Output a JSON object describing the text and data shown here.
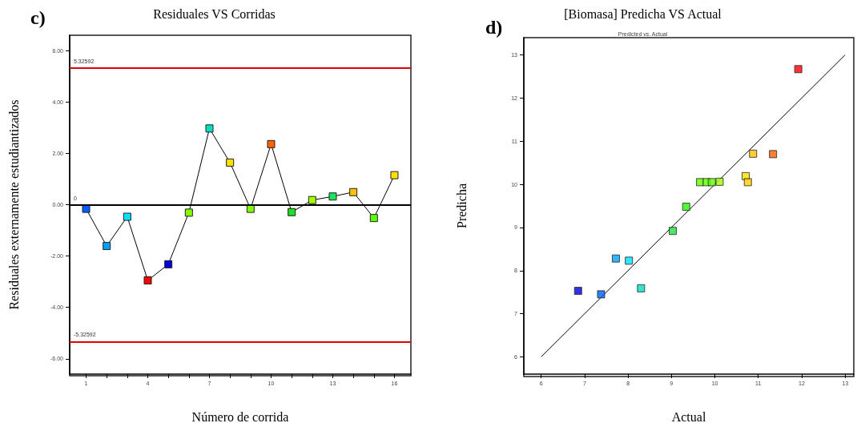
{
  "chart_data": [
    {
      "type": "line",
      "title": "Residuales VS Corridas",
      "xlabel": "Número de corrida",
      "ylabel": "Residuales externamente estudiantizados",
      "annotations": [
        "c)"
      ],
      "x": [
        1,
        2,
        3,
        4,
        5,
        6,
        7,
        8,
        9,
        10,
        11,
        12,
        13,
        14,
        15,
        16
      ],
      "values": [
        -0.16,
        -1.61,
        -0.47,
        -2.95,
        -2.32,
        -0.31,
        2.97,
        1.64,
        -0.16,
        2.36,
        -0.29,
        0.18,
        0.32,
        0.49,
        -0.52,
        1.15
      ],
      "color": "#000000",
      "colors": [
        "#0060ff",
        "#00a0ff",
        "#00e0ff",
        "#ff0000",
        "#0000e0",
        "#80ff00",
        "#00e0c0",
        "#ffe000",
        "#80ff00",
        "#ff6000",
        "#20e020",
        "#a0ff00",
        "#20e060",
        "#ffc000",
        "#60ff00",
        "#ffe000"
      ],
      "xlim": [
        0.2,
        16.8
      ],
      "xticks": [
        1,
        {
          "value": 2,
          "label": null
        },
        {
          "value": 3,
          "label": null
        },
        4,
        {
          "value": 5,
          "label": null
        },
        {
          "value": 6,
          "label": null
        },
        7,
        {
          "value": 8,
          "label": null
        },
        {
          "value": 9,
          "label": null
        },
        10,
        {
          "value": 11,
          "label": null
        },
        {
          "value": 12,
          "label": null
        },
        13,
        {
          "value": 14,
          "label": null
        },
        {
          "value": 15,
          "label": null
        },
        16
      ],
      "ylim": [
        -6.6,
        6.6
      ],
      "yticks": [
        {
          "value": -6,
          "label": "-6.00"
        },
        {
          "value": -4,
          "label": "-4.00"
        },
        {
          "value": -2,
          "label": "-2.00"
        },
        {
          "value": 0,
          "label": "0.00"
        },
        {
          "value": 2,
          "label": "2.00"
        },
        {
          "value": 4,
          "label": "4.00"
        },
        {
          "value": 6,
          "label": "6.00"
        }
      ],
      "ref_lines": [
        {
          "axis": "y",
          "value": 5.32592,
          "label": "5.32592",
          "color": "#e00000"
        },
        {
          "axis": "y",
          "value": 0,
          "label": "0",
          "color": "#000000"
        },
        {
          "axis": "y",
          "value": -5.32592,
          "label": "-5.32592",
          "color": "#e00000"
        }
      ],
      "marker": "square",
      "line_style": "solid",
      "grid": false
    },
    {
      "type": "scatter",
      "title": "[Biomasa] Predicha VS Actual",
      "subtitle": "Predicted vs. Actual",
      "xlabel": "Actual",
      "ylabel": "Predicha",
      "annotations": [
        "d)"
      ],
      "series": [
        {
          "x": [
            6.85,
            7.38,
            7.72,
            8.02,
            8.3,
            9.03,
            9.34,
            9.66,
            9.81,
            9.93,
            10.11,
            10.71,
            10.76,
            10.88,
            11.34,
            11.92
          ],
          "values": [
            7.53,
            7.45,
            8.28,
            8.23,
            7.59,
            8.92,
            9.48,
            10.05,
            10.05,
            10.05,
            10.06,
            10.19,
            10.05,
            10.71,
            10.7,
            12.67
          ],
          "colors": [
            "#0000e0",
            "#0060ff",
            "#00a0ff",
            "#00e0ff",
            "#00e0c0",
            "#20e040",
            "#20ff00",
            "#60ff00",
            "#60ff00",
            "#60ff00",
            "#a0ff00",
            "#ffe000",
            "#ffd000",
            "#ffc000",
            "#ff6000",
            "#ff0000"
          ]
        },
        {
          "type": "line",
          "x": [
            6,
            13
          ],
          "values": [
            6,
            13
          ],
          "color": "#000000",
          "marker": "none"
        }
      ],
      "xlim": [
        5.6,
        13.2
      ],
      "xticks": [
        6,
        7,
        8,
        9,
        10,
        11,
        12,
        13
      ],
      "ylim": [
        5.6,
        13.4
      ],
      "yticks": [
        6,
        7,
        8,
        9,
        10,
        11,
        12,
        13
      ],
      "marker": "square",
      "grid": false
    }
  ]
}
